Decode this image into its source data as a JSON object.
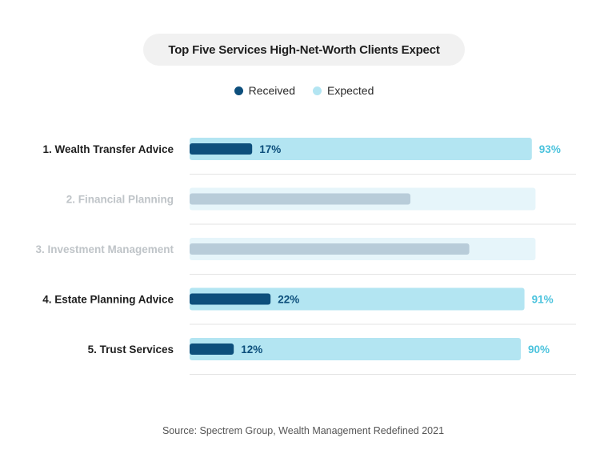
{
  "colors": {
    "received": "#0d4f7c",
    "expected": "#b3e5f2",
    "expected_label": "#4cc3dd",
    "dimmed_track": "#e6f5fa",
    "dimmed_bar": "#b8ccd9",
    "dimmed_label": "#bfc4c8",
    "active_label": "#1e1e1e",
    "divider": "#e3e3e3",
    "title_bg": "#f1f1f1"
  },
  "chart_data": {
    "type": "bar",
    "orientation": "horizontal",
    "title": "Top Five Services High-Net-Worth Clients Expect",
    "legend": {
      "position": "top-center",
      "entries": [
        "Received",
        "Expected"
      ]
    },
    "xlim": [
      0,
      100
    ],
    "grid": false,
    "categories": [
      "1. Wealth Transfer Advice",
      "2. Financial Planning",
      "3. Investment Management",
      "4. Estate Planning Advice",
      "5. Trust Services"
    ],
    "highlighted": [
      true,
      false,
      false,
      true,
      true
    ],
    "series": [
      {
        "name": "Received",
        "values": [
          17,
          60,
          76,
          22,
          12
        ],
        "labels": [
          "17%",
          "",
          "",
          "22%",
          "12%"
        ]
      },
      {
        "name": "Expected",
        "values": [
          93,
          94,
          94,
          91,
          90
        ],
        "labels": [
          "93%",
          "",
          "",
          "91%",
          "90%"
        ]
      }
    ]
  },
  "source": "Source: Spectrem Group, Wealth Management Redefined 2021"
}
